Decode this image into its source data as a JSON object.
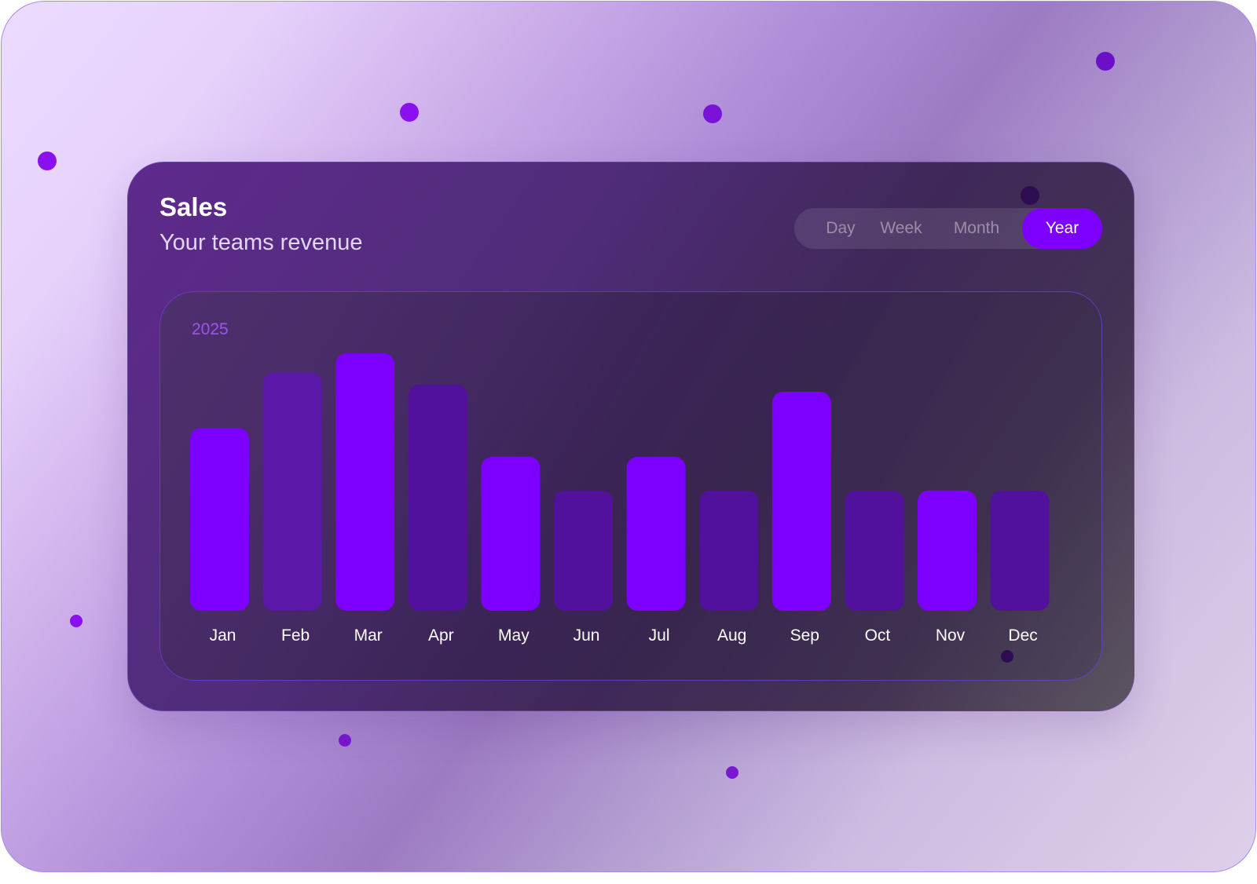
{
  "card": {
    "title": "Sales",
    "subtitle": "Your teams revenue"
  },
  "range_tabs": [
    {
      "label": "Day",
      "active": false
    },
    {
      "label": "Week",
      "active": false
    },
    {
      "label": "Month",
      "active": false
    },
    {
      "label": "Year",
      "active": true
    }
  ],
  "colors": {
    "accent": "#7d00ff",
    "bar_bright": "#7d00ff",
    "bar_dim_1": "#5a17a8",
    "bar_dim_2": "#52119c",
    "tab_text": "#9a8fa8",
    "dot": "#8a10f0"
  },
  "chart_data": {
    "type": "bar",
    "title": "2025",
    "categories": [
      "Jan",
      "Feb",
      "Mar",
      "Apr",
      "May",
      "Jun",
      "Jul",
      "Aug",
      "Sep",
      "Oct",
      "Nov",
      "Dec"
    ],
    "values": [
      76,
      99,
      107,
      94,
      64,
      50,
      64,
      50,
      91,
      50,
      50,
      50
    ],
    "ylim": [
      0,
      107
    ],
    "grid": false,
    "highlighted": [
      true,
      false,
      true,
      false,
      true,
      false,
      true,
      false,
      true,
      false,
      true,
      false
    ]
  }
}
